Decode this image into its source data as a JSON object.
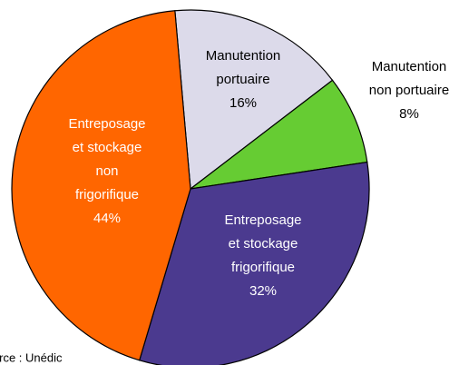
{
  "chart_data": {
    "type": "pie",
    "categories": [
      "Manutention\nportuaire",
      "Manutention\nnon portuaire",
      "Entreposage\net stockage\nfrigorifique",
      "Entreposage\net stockage\nnon\nfrigorifique"
    ],
    "values": [
      16,
      8,
      32,
      44
    ],
    "value_labels": [
      "16%",
      "8%",
      "32%",
      "44%"
    ],
    "colors": [
      "#dcdaea",
      "#66cc33",
      "#4b3a8f",
      "#ff6600"
    ],
    "source": "Source : Unédic"
  }
}
